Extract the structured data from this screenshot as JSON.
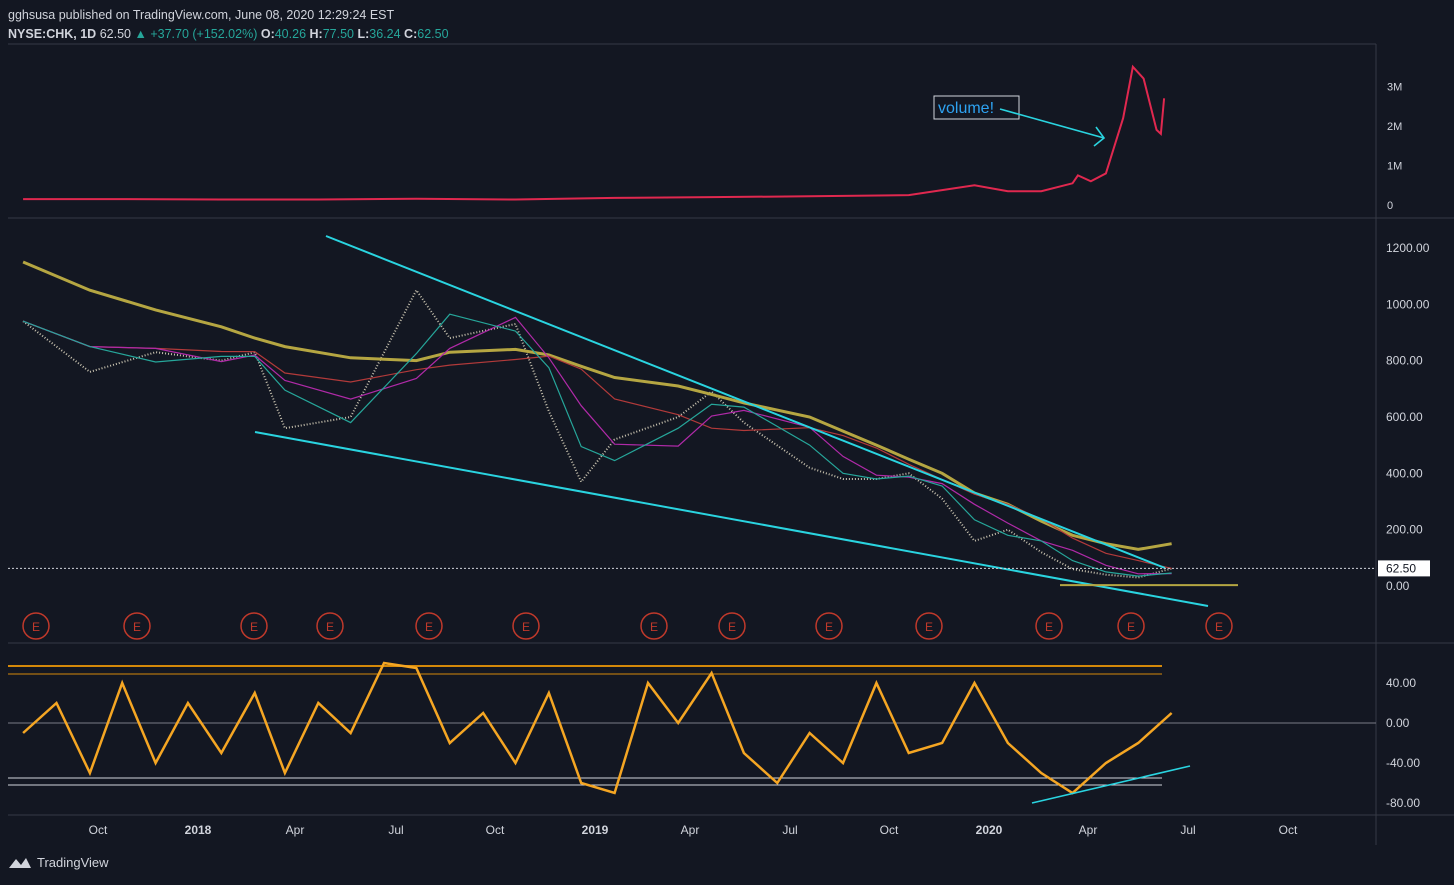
{
  "header": {
    "publisher": "gghsusa published on TradingView.com, June 08, 2020 12:29:24 EST",
    "symbol": "NYSE:CHK, 1D",
    "last": "62.50",
    "change_arrow": "▲",
    "change": "+37.70 (+152.02%)",
    "o_label": "O:",
    "o_value": "40.26",
    "h_label": "H:",
    "h_value": "77.50",
    "l_label": "L:",
    "l_value": "36.24",
    "c_label": "C:",
    "c_value": "62.50"
  },
  "footer": {
    "brand": "TradingView"
  },
  "annotation": {
    "text": "volume!"
  },
  "colors": {
    "background": "#131722",
    "volume_line": "#e0284f",
    "trendline": "#2ad4e0",
    "ema_gold": "#b5a642",
    "ema_red": "#b23a3a",
    "ema_magenta": "#b02aa8",
    "ema_teal": "#26a69a",
    "osc_orange": "#f5a623",
    "osc_band": "#d4890a",
    "earnings": "#c0392b"
  },
  "chart_data": [
    {
      "type": "line",
      "panel": "volume",
      "series": [],
      "x": [
        "2017-07",
        "2017-10",
        "2018-01",
        "2018-04",
        "2018-07",
        "2018-10",
        "2019-01",
        "2019-04",
        "2019-07",
        "2019-10",
        "2019-12",
        "2020-01",
        "2020-02",
        "2020-03",
        "2020-03-20",
        "2020-04-01",
        "2020-04-15",
        "2020-05-01",
        "2020-05-10",
        "2020-05-20",
        "2020-06-01",
        "2020-06-05",
        "2020-06-08"
      ],
      "values": [
        0.15,
        0.15,
        0.14,
        0.14,
        0.16,
        0.14,
        0.18,
        0.2,
        0.22,
        0.25,
        0.5,
        0.35,
        0.35,
        0.55,
        0.75,
        0.6,
        0.8,
        2.2,
        3.5,
        3.2,
        1.9,
        1.8,
        2.7
      ],
      "yunit": "M",
      "yticks": [
        "3M",
        "2M",
        "1M",
        "0"
      ]
    },
    {
      "type": "line",
      "panel": "price",
      "yticks": [
        "1200.00",
        "1000.00",
        "800.00",
        "600.00",
        "400.00",
        "200.00",
        "0.00"
      ],
      "last_price_label": "62.50",
      "x": [
        "2017-07",
        "2017-09",
        "2017-11",
        "2018-01",
        "2018-02",
        "2018-03",
        "2018-05",
        "2018-07",
        "2018-08",
        "2018-10",
        "2018-11",
        "2018-12",
        "2019-01",
        "2019-03",
        "2019-04",
        "2019-05",
        "2019-07",
        "2019-08",
        "2019-09",
        "2019-10",
        "2019-11",
        "2019-12",
        "2020-01",
        "2020-02",
        "2020-03",
        "2020-04",
        "2020-05",
        "2020-06"
      ],
      "close": [
        940,
        760,
        830,
        800,
        830,
        560,
        600,
        1050,
        880,
        930,
        620,
        370,
        520,
        600,
        690,
        580,
        420,
        380,
        380,
        400,
        310,
        160,
        200,
        120,
        60,
        40,
        30,
        62
      ],
      "ema_200": [
        1150,
        1050,
        980,
        920,
        880,
        850,
        810,
        800,
        830,
        840,
        820,
        780,
        740,
        710,
        680,
        650,
        600,
        550,
        500,
        450,
        400,
        330,
        290,
        230,
        180,
        150,
        130,
        150
      ],
      "xlabels": [
        "Oct",
        "2018",
        "Apr",
        "Jul",
        "Oct",
        "2019",
        "Apr",
        "Jul",
        "Oct",
        "2020",
        "Apr",
        "Jul",
        "Oct"
      ],
      "earnings_marker": "E",
      "earnings_count": 13
    },
    {
      "type": "line",
      "panel": "oscillator",
      "yticks": [
        "40.00",
        "0.00",
        "-40.00",
        "-80.00"
      ],
      "upper_band": 55,
      "lower_bands": [
        -55,
        -62
      ],
      "x": [
        "2017-07",
        "2017-08",
        "2017-09",
        "2017-10",
        "2017-11",
        "2017-12",
        "2018-01",
        "2018-02",
        "2018-03",
        "2018-04",
        "2018-05",
        "2018-06",
        "2018-07",
        "2018-08",
        "2018-09",
        "2018-10",
        "2018-11",
        "2018-12",
        "2019-01",
        "2019-02",
        "2019-03",
        "2019-04",
        "2019-05",
        "2019-06",
        "2019-07",
        "2019-08",
        "2019-09",
        "2019-10",
        "2019-11",
        "2019-12",
        "2020-01",
        "2020-02",
        "2020-03",
        "2020-04",
        "2020-05",
        "2020-06"
      ],
      "values": [
        -10,
        20,
        -50,
        40,
        -40,
        20,
        -30,
        30,
        -50,
        20,
        -10,
        60,
        55,
        -20,
        10,
        -40,
        30,
        -60,
        -70,
        40,
        0,
        50,
        -30,
        -60,
        -10,
        -40,
        40,
        -30,
        -20,
        40,
        -20,
        -50,
        -70,
        -40,
        -20,
        10
      ]
    }
  ]
}
